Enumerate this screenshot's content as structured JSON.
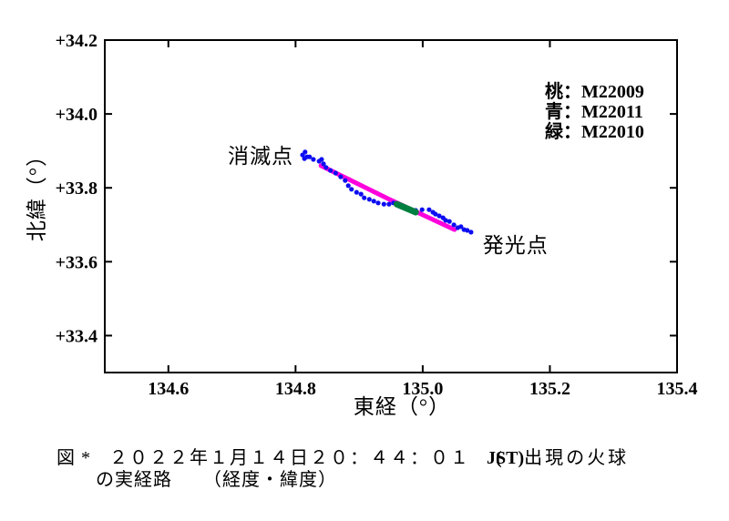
{
  "chart_data": {
    "type": "scatter",
    "title": "",
    "xlabel": "東経（°）",
    "ylabel": "北緯（°）",
    "xlim": [
      134.5,
      135.4
    ],
    "ylim": [
      33.3,
      34.2
    ],
    "grid": false,
    "x_ticks": [
      134.6,
      134.8,
      135.0,
      135.2,
      135.4
    ],
    "x_tick_labels": [
      "134.6",
      "134.8",
      "135.0",
      "135.2",
      "135.4"
    ],
    "y_ticks": [
      34.2,
      34.0,
      33.8,
      33.6,
      33.4
    ],
    "y_tick_labels": [
      "+34.2",
      "+34.0",
      "+33.8",
      "+33.6",
      "+33.4"
    ],
    "annotations": [
      {
        "text": "消滅点",
        "x": 134.745,
        "y": 33.887
      },
      {
        "text": "発光点",
        "x": 135.146,
        "y": 33.645
      }
    ],
    "legend": {
      "position": "upper right",
      "entries": [
        {
          "label": "桃：M22009",
          "series": "M22009",
          "color": "#ff00dd"
        },
        {
          "label": "青：M22011",
          "series": "M22011",
          "color": "#0d0df2"
        },
        {
          "label": "緑：M22010",
          "series": "M22010",
          "color": "#008040"
        }
      ]
    },
    "series": [
      {
        "name": "M22009",
        "color_name": "桃",
        "color": "#ff00dd",
        "style": "thick-line",
        "points": [
          [
            134.84,
            33.86
          ],
          [
            134.945,
            33.771
          ],
          [
            135.05,
            33.687
          ]
        ]
      },
      {
        "name": "M22011",
        "color_name": "青",
        "color": "#0d0df2",
        "style": "scatter",
        "points": [
          [
            134.811,
            33.889
          ],
          [
            134.815,
            33.897
          ],
          [
            134.818,
            33.884
          ],
          [
            134.814,
            33.879
          ],
          [
            134.822,
            33.884
          ],
          [
            134.828,
            33.877
          ],
          [
            134.837,
            33.872
          ],
          [
            134.841,
            33.877
          ],
          [
            134.844,
            33.865
          ],
          [
            134.848,
            33.855
          ],
          [
            134.855,
            33.847
          ],
          [
            134.863,
            33.84
          ],
          [
            134.871,
            33.83
          ],
          [
            134.878,
            33.82
          ],
          [
            134.883,
            33.806
          ],
          [
            134.888,
            33.796
          ],
          [
            134.896,
            33.788
          ],
          [
            134.903,
            33.783
          ],
          [
            134.908,
            33.773
          ],
          [
            134.916,
            33.769
          ],
          [
            134.923,
            33.764
          ],
          [
            134.93,
            33.759
          ],
          [
            134.939,
            33.756
          ],
          [
            134.947,
            33.756
          ],
          [
            134.954,
            33.759
          ],
          [
            134.963,
            33.751
          ],
          [
            134.971,
            33.746
          ],
          [
            134.98,
            33.741
          ],
          [
            134.989,
            33.739
          ],
          [
            134.999,
            33.741
          ],
          [
            135.01,
            33.741
          ],
          [
            135.016,
            33.734
          ],
          [
            135.02,
            33.729
          ],
          [
            135.026,
            33.724
          ],
          [
            135.032,
            33.719
          ],
          [
            135.036,
            33.712
          ],
          [
            135.042,
            33.709
          ],
          [
            135.049,
            33.7
          ],
          [
            135.055,
            33.692
          ],
          [
            135.06,
            33.695
          ],
          [
            135.065,
            33.687
          ],
          [
            135.07,
            33.685
          ],
          [
            135.076,
            33.68
          ]
        ]
      },
      {
        "name": "M22010",
        "color_name": "緑",
        "color": "#008040",
        "style": "thick-line",
        "points": [
          [
            134.959,
            33.756
          ],
          [
            134.989,
            33.734
          ]
        ]
      }
    ]
  },
  "caption": {
    "prefix": "図 *",
    "datetime": "２０２２年１月１４日２０：４４：０１",
    "jst_paren": "(",
    "jst": "JST)",
    "line1_rest": "出現の火球",
    "line2_route": "の実経路",
    "line2_coords": "（経度・緯度）"
  }
}
